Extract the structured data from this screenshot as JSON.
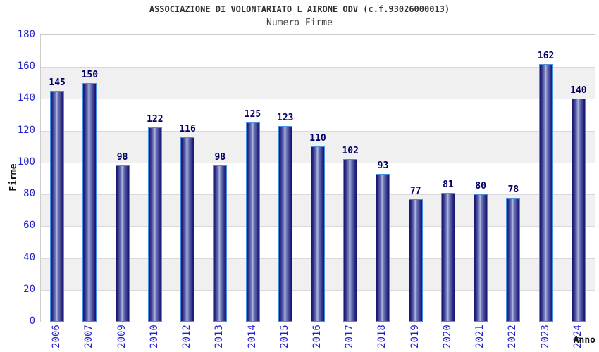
{
  "chart_data": {
    "type": "bar",
    "title": "ASSOCIAZIONE DI VOLONTARIATO L AIRONE ODV (c.f.93026000013)",
    "subtitle": "Numero Firme",
    "xlabel": "Anno",
    "ylabel": "Firme",
    "categories": [
      "2006",
      "2007",
      "2009",
      "2010",
      "2012",
      "2013",
      "2014",
      "2015",
      "2016",
      "2017",
      "2018",
      "2019",
      "2020",
      "2021",
      "2022",
      "2023",
      "2024"
    ],
    "values": [
      145,
      150,
      98,
      122,
      116,
      98,
      125,
      123,
      110,
      102,
      93,
      77,
      81,
      80,
      78,
      162,
      140
    ],
    "ylim": [
      0,
      180
    ],
    "ytick_step": 20,
    "grid": true,
    "legend": "none",
    "background_bands": "alternating white and light gray every 20 units",
    "bar_value_labels_shown": true,
    "x_tick_rotation_deg": 90
  },
  "colors": {
    "tick_label": "#2222cc",
    "value_label": "#000066",
    "bar_dark": "#16166b",
    "bar_mid": "#23237f",
    "bar_light": "#b2b8de",
    "bar_border": "#4a8fe0",
    "band_gray": "#f0f0f0",
    "band_white": "#ffffff",
    "grid_line": "#d9d9d9",
    "plot_border": "#cccccc",
    "title": "#333333",
    "subtitle": "#444444",
    "axis_title": "#111111"
  }
}
